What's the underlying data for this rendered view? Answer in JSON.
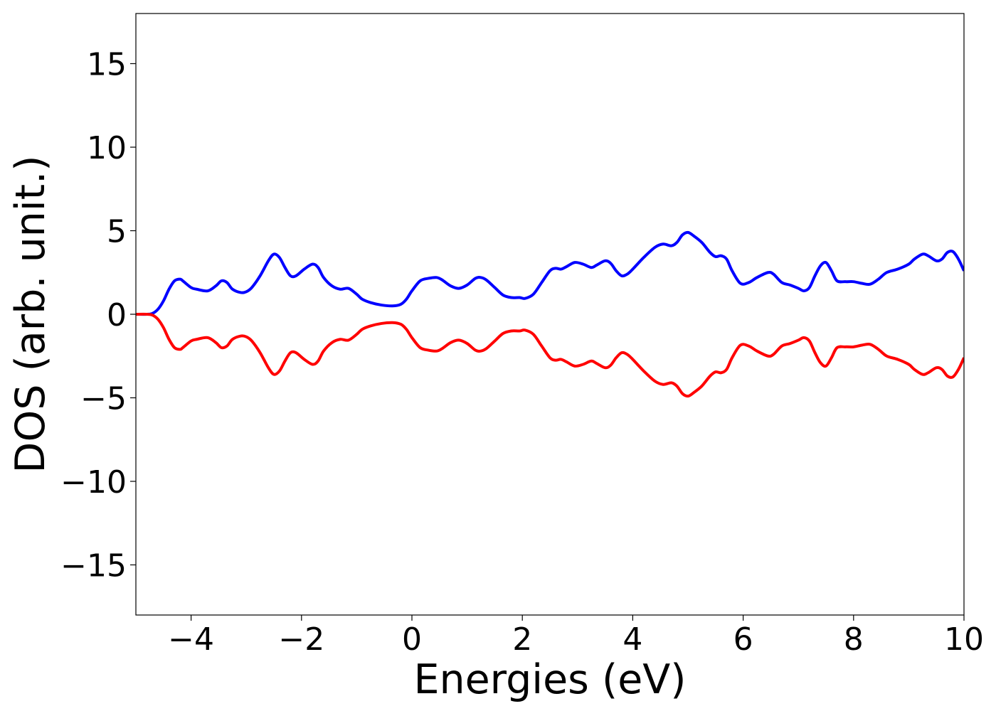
{
  "chart_data": {
    "type": "line",
    "title": "",
    "xlabel": "Energies (eV)",
    "ylabel": "DOS (arb. unit.)",
    "xlim": [
      -5,
      10
    ],
    "ylim": [
      -18,
      18
    ],
    "xticks": [
      -4,
      -2,
      0,
      2,
      4,
      6,
      8,
      10
    ],
    "xtick_labels": [
      "−4",
      "−2",
      "0",
      "2",
      "4",
      "6",
      "8",
      "10"
    ],
    "yticks": [
      -15,
      -10,
      -5,
      0,
      5,
      10,
      15
    ],
    "ytick_labels": [
      "−15",
      "−10",
      "−5",
      "0",
      "5",
      "10",
      "15"
    ],
    "grid": false,
    "legend": "none",
    "series": [
      {
        "color": "#0000ff",
        "x": [
          -5.0,
          -4.8,
          -4.7,
          -4.6,
          -4.5,
          -4.4,
          -4.3,
          -4.2,
          -4.15,
          -4.0,
          -3.9,
          -3.7,
          -3.55,
          -3.45,
          -3.35,
          -3.25,
          -3.1,
          -3.0,
          -2.9,
          -2.75,
          -2.6,
          -2.5,
          -2.4,
          -2.3,
          -2.2,
          -2.1,
          -1.95,
          -1.8,
          -1.7,
          -1.6,
          -1.45,
          -1.3,
          -1.15,
          -1.0,
          -0.9,
          -0.75,
          -0.55,
          -0.35,
          -0.2,
          -0.1,
          0.0,
          0.15,
          0.3,
          0.45,
          0.55,
          0.7,
          0.85,
          1.0,
          1.15,
          1.25,
          1.35,
          1.5,
          1.65,
          1.8,
          1.95,
          2.05,
          2.2,
          2.35,
          2.5,
          2.6,
          2.7,
          2.8,
          2.95,
          3.1,
          3.25,
          3.35,
          3.5,
          3.6,
          3.7,
          3.8,
          3.9,
          4.0,
          4.2,
          4.4,
          4.55,
          4.7,
          4.8,
          4.9,
          5.0,
          5.1,
          5.25,
          5.4,
          5.5,
          5.6,
          5.7,
          5.8,
          5.95,
          6.1,
          6.25,
          6.45,
          6.55,
          6.7,
          6.85,
          7.0,
          7.1,
          7.2,
          7.3,
          7.4,
          7.5,
          7.6,
          7.7,
          7.85,
          8.0,
          8.15,
          8.3,
          8.45,
          8.6,
          8.8,
          9.0,
          9.1,
          9.25,
          9.35,
          9.5,
          9.6,
          9.7,
          9.8,
          9.9,
          10.0
        ],
        "y": [
          0.0,
          0.0,
          0.05,
          0.3,
          0.8,
          1.5,
          2.0,
          2.1,
          2.0,
          1.6,
          1.5,
          1.4,
          1.7,
          2.0,
          1.9,
          1.5,
          1.3,
          1.35,
          1.6,
          2.3,
          3.2,
          3.6,
          3.4,
          2.8,
          2.3,
          2.3,
          2.7,
          3.0,
          2.8,
          2.2,
          1.7,
          1.5,
          1.55,
          1.2,
          0.9,
          0.7,
          0.55,
          0.5,
          0.6,
          0.9,
          1.4,
          2.0,
          2.15,
          2.2,
          2.05,
          1.7,
          1.55,
          1.75,
          2.15,
          2.2,
          2.05,
          1.6,
          1.15,
          1.0,
          1.0,
          0.95,
          1.2,
          1.9,
          2.6,
          2.75,
          2.7,
          2.85,
          3.1,
          3.0,
          2.8,
          2.95,
          3.2,
          3.05,
          2.6,
          2.3,
          2.4,
          2.7,
          3.4,
          4.0,
          4.2,
          4.1,
          4.3,
          4.75,
          4.9,
          4.7,
          4.3,
          3.7,
          3.45,
          3.5,
          3.3,
          2.6,
          1.85,
          1.9,
          2.2,
          2.5,
          2.4,
          1.9,
          1.75,
          1.55,
          1.4,
          1.6,
          2.3,
          2.9,
          3.1,
          2.6,
          2.0,
          1.95,
          1.95,
          1.85,
          1.8,
          2.1,
          2.5,
          2.7,
          3.0,
          3.3,
          3.6,
          3.5,
          3.2,
          3.3,
          3.7,
          3.75,
          3.3,
          2.6
        ]
      },
      {
        "color": "#ff0000",
        "x": [
          -5.0,
          -4.8,
          -4.7,
          -4.6,
          -4.5,
          -4.4,
          -4.3,
          -4.2,
          -4.15,
          -4.0,
          -3.9,
          -3.7,
          -3.55,
          -3.45,
          -3.35,
          -3.25,
          -3.1,
          -3.0,
          -2.9,
          -2.75,
          -2.6,
          -2.5,
          -2.4,
          -2.3,
          -2.2,
          -2.1,
          -1.95,
          -1.8,
          -1.7,
          -1.6,
          -1.45,
          -1.3,
          -1.15,
          -1.0,
          -0.9,
          -0.75,
          -0.55,
          -0.35,
          -0.2,
          -0.1,
          0.0,
          0.15,
          0.3,
          0.45,
          0.55,
          0.7,
          0.85,
          1.0,
          1.15,
          1.25,
          1.35,
          1.5,
          1.65,
          1.8,
          1.95,
          2.05,
          2.2,
          2.35,
          2.5,
          2.6,
          2.7,
          2.8,
          2.95,
          3.1,
          3.25,
          3.35,
          3.5,
          3.6,
          3.7,
          3.8,
          3.9,
          4.0,
          4.2,
          4.4,
          4.55,
          4.7,
          4.8,
          4.9,
          5.0,
          5.1,
          5.25,
          5.4,
          5.5,
          5.6,
          5.7,
          5.8,
          5.95,
          6.1,
          6.25,
          6.45,
          6.55,
          6.7,
          6.85,
          7.0,
          7.1,
          7.2,
          7.3,
          7.4,
          7.5,
          7.6,
          7.7,
          7.85,
          8.0,
          8.15,
          8.3,
          8.45,
          8.6,
          8.8,
          9.0,
          9.1,
          9.25,
          9.35,
          9.5,
          9.6,
          9.7,
          9.8,
          9.9,
          10.0
        ],
        "y": [
          0.0,
          0.0,
          -0.05,
          -0.3,
          -0.8,
          -1.5,
          -2.0,
          -2.1,
          -2.0,
          -1.6,
          -1.5,
          -1.4,
          -1.7,
          -2.0,
          -1.9,
          -1.5,
          -1.3,
          -1.35,
          -1.6,
          -2.3,
          -3.2,
          -3.6,
          -3.4,
          -2.8,
          -2.3,
          -2.3,
          -2.7,
          -3.0,
          -2.8,
          -2.2,
          -1.7,
          -1.5,
          -1.55,
          -1.2,
          -0.9,
          -0.7,
          -0.55,
          -0.5,
          -0.6,
          -0.9,
          -1.4,
          -2.0,
          -2.15,
          -2.2,
          -2.05,
          -1.7,
          -1.55,
          -1.75,
          -2.15,
          -2.2,
          -2.05,
          -1.6,
          -1.15,
          -1.0,
          -1.0,
          -0.95,
          -1.2,
          -1.9,
          -2.6,
          -2.75,
          -2.7,
          -2.85,
          -3.1,
          -3.0,
          -2.8,
          -2.95,
          -3.2,
          -3.05,
          -2.6,
          -2.3,
          -2.4,
          -2.7,
          -3.4,
          -4.0,
          -4.2,
          -4.1,
          -4.3,
          -4.75,
          -4.9,
          -4.7,
          -4.3,
          -3.7,
          -3.45,
          -3.5,
          -3.3,
          -2.6,
          -1.85,
          -1.9,
          -2.2,
          -2.5,
          -2.4,
          -1.9,
          -1.75,
          -1.55,
          -1.4,
          -1.6,
          -2.3,
          -2.9,
          -3.1,
          -2.6,
          -2.0,
          -1.95,
          -1.95,
          -1.85,
          -1.8,
          -2.1,
          -2.5,
          -2.7,
          -3.0,
          -3.3,
          -3.6,
          -3.5,
          -3.2,
          -3.3,
          -3.7,
          -3.75,
          -3.3,
          -2.6
        ]
      }
    ]
  }
}
